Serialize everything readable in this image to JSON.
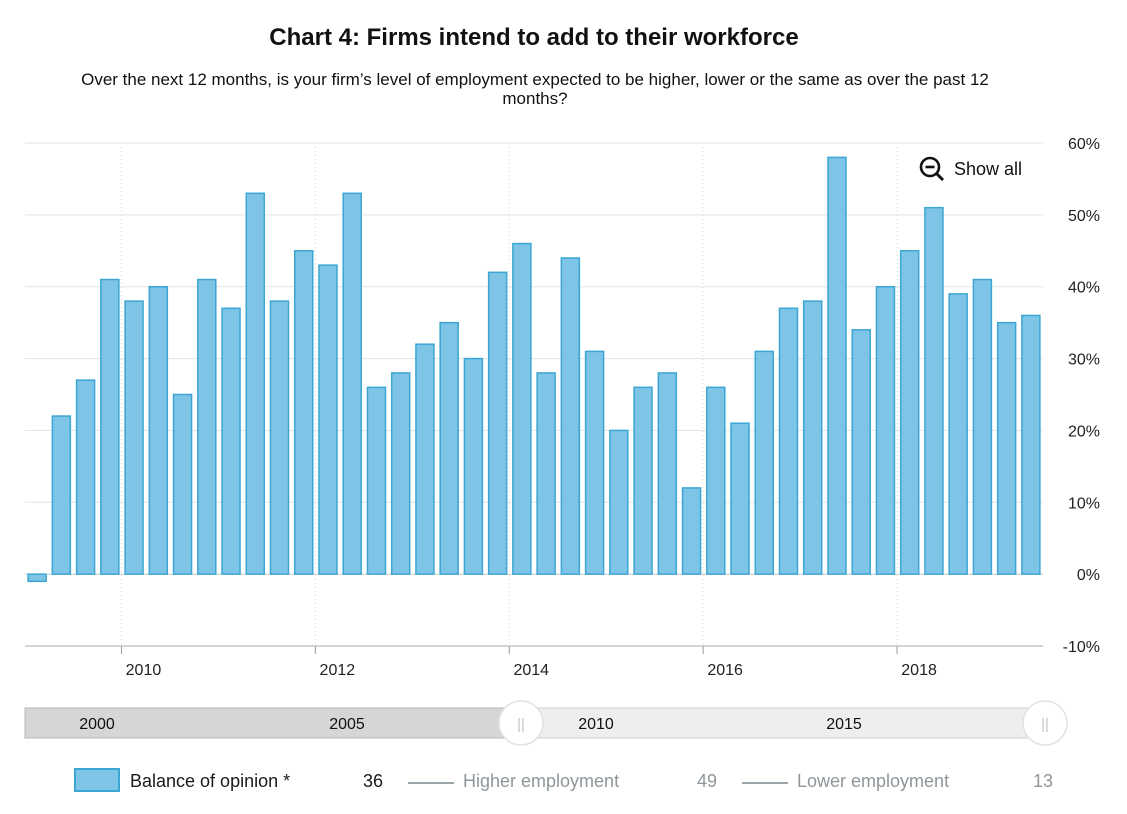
{
  "title": "Chart 4: Firms intend to add to their workforce",
  "subtitle": "Over the next 12 months, is your firm’s level of employment expected to be higher, lower or the same as over the past 12 months?",
  "show_all_label": "Show all",
  "navigator": {
    "labels": [
      "2000",
      "2005",
      "2010",
      "2015"
    ],
    "handle_glyph": "||"
  },
  "legend": {
    "series": [
      {
        "name": "Balance of opinion *",
        "value": "36",
        "active": true
      },
      {
        "name": "Higher employment",
        "value": "49",
        "active": false
      },
      {
        "name": "Lower employment",
        "value": "13",
        "active": false
      }
    ]
  },
  "chart_data": {
    "type": "bar",
    "title": "Chart 4: Firms intend to add to their workforce",
    "series_name": "Balance of opinion *",
    "color": "#7ec4e6",
    "border_color": "#3ba6d3",
    "x_start_year": 2009,
    "x_start_quarter": 1,
    "values": [
      -1,
      22,
      27,
      41,
      38,
      40,
      25,
      41,
      37,
      53,
      38,
      45,
      43,
      53,
      26,
      28,
      32,
      35,
      30,
      42,
      46,
      28,
      44,
      31,
      20,
      26,
      28,
      12,
      26,
      21,
      31,
      37,
      38,
      58,
      34,
      40,
      45,
      51,
      39,
      41,
      35,
      36
    ],
    "x_ticks": [
      "2010",
      "2012",
      "2014",
      "2016",
      "2018"
    ],
    "y_ticks": [
      "60%",
      "50%",
      "40%",
      "30%",
      "20%",
      "10%",
      "0%",
      "-10%"
    ],
    "ylim": [
      -10,
      60
    ],
    "ylabel": "",
    "xlabel": ""
  }
}
